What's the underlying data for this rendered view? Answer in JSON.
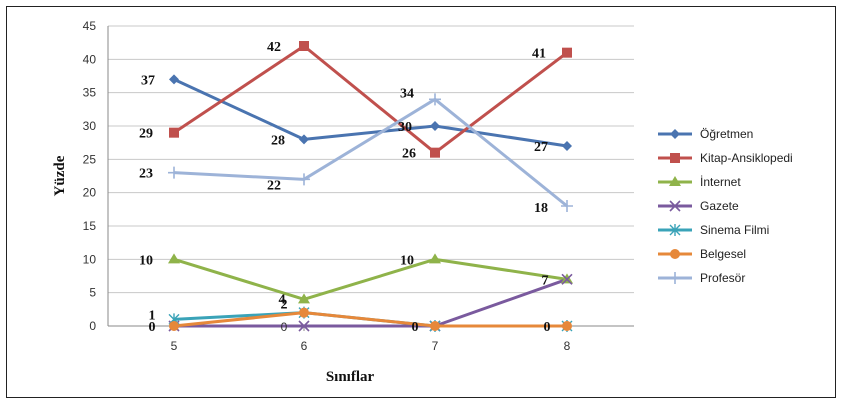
{
  "chart_data": {
    "type": "line",
    "title": "",
    "xlabel": "Sınıflar",
    "ylabel": "Yüzde",
    "categories": [
      "5",
      "6",
      "7",
      "8"
    ],
    "ylim": [
      0,
      45
    ],
    "yticks": [
      0,
      5,
      10,
      15,
      20,
      25,
      30,
      35,
      40,
      45
    ],
    "grid": true,
    "legend_position": "right",
    "series": [
      {
        "name": "Öğretmen",
        "values": [
          37,
          28,
          30,
          27
        ],
        "color": "#4a74b0",
        "marker": "diamond",
        "labels": [
          "37",
          "28",
          "30",
          "27"
        ]
      },
      {
        "name": "Kitap-Ansiklopedi",
        "values": [
          29,
          42,
          26,
          41
        ],
        "color": "#c0504d",
        "marker": "square",
        "labels": [
          "29",
          "42",
          "26",
          "41"
        ]
      },
      {
        "name": "İnternet",
        "values": [
          10,
          4,
          10,
          7
        ],
        "color": "#8fb34a",
        "marker": "triangle",
        "labels": [
          "10",
          "4",
          "10",
          "7"
        ]
      },
      {
        "name": "Gazete",
        "values": [
          0,
          0,
          0,
          7
        ],
        "color": "#7a5a9e",
        "marker": "x",
        "labels": [
          "",
          "",
          "",
          ""
        ]
      },
      {
        "name": "Sinema Filmi",
        "values": [
          1,
          2,
          0,
          0
        ],
        "color": "#3aa3b8",
        "marker": "star",
        "labels": [
          "1",
          "",
          "",
          ""
        ]
      },
      {
        "name": "Belgesel",
        "values": [
          0,
          2,
          0,
          0
        ],
        "color": "#e6883a",
        "marker": "circle",
        "labels": [
          "0",
          "2",
          "0",
          "0"
        ]
      },
      {
        "name": "Profesör",
        "values": [
          23,
          22,
          34,
          18
        ],
        "color": "#9db3d8",
        "marker": "plus",
        "labels": [
          "23",
          "22",
          "34",
          "18"
        ]
      }
    ],
    "extra_labels": [
      {
        "category": "6",
        "value": 0,
        "text": "0"
      }
    ]
  }
}
